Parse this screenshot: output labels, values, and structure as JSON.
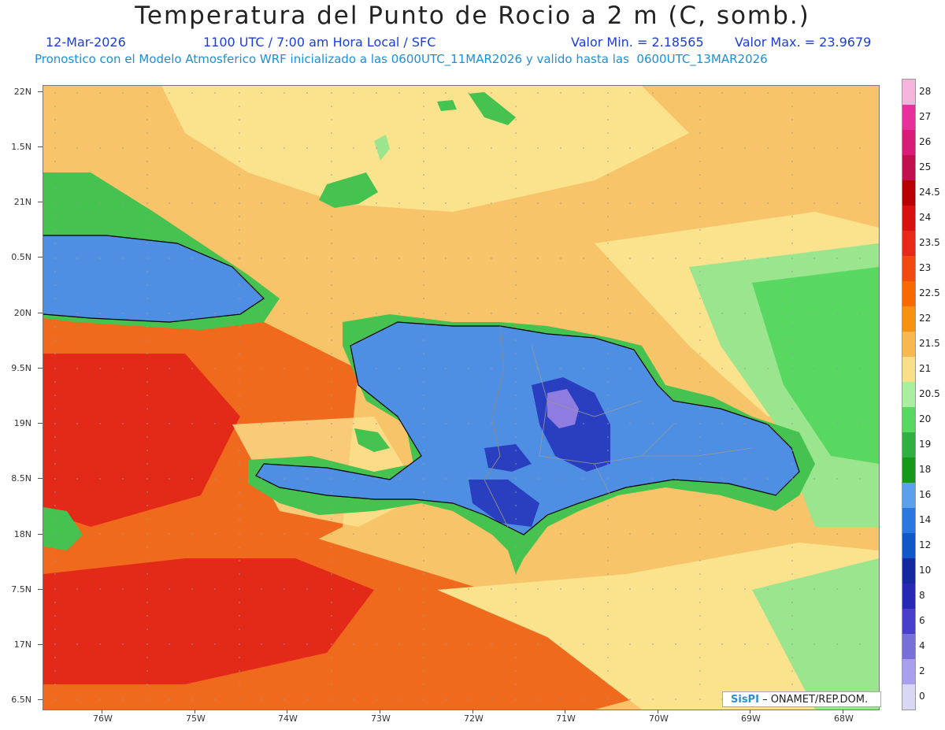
{
  "header": {
    "title": "Temperatura del Punto de Rocio a 2 m (C, somb.)",
    "date": "12-Mar-2026",
    "time_info": "1100 UTC / 7:00 am Hora Local / SFC",
    "min_value": "Valor Min. = 2.18565",
    "max_value": "Valor Max. = 23.9679",
    "model_info": "Pronostico con el Modelo Atmosferico WRF inicializado a las 0600UTC_11MAR2026 y valido hasta las  0600UTC_13MAR2026"
  },
  "axes": {
    "lat_labels": [
      "22N",
      "1.5N",
      "21N",
      "0.5N",
      "20N",
      "9.5N",
      "19N",
      "8.5N",
      "18N",
      "7.5N",
      "17N",
      "6.5N"
    ],
    "lon_labels": [
      "76W",
      "75W",
      "74W",
      "73W",
      "72W",
      "71W",
      "70W",
      "69W",
      "68W"
    ]
  },
  "legend": {
    "levels": [
      "28",
      "27",
      "26",
      "25",
      "24.5",
      "24",
      "23.5",
      "23",
      "22.5",
      "22",
      "21.5",
      "21",
      "20.5",
      "20",
      "19",
      "18",
      "16",
      "14",
      "12",
      "10",
      "8",
      "6",
      "4",
      "2",
      "0"
    ],
    "colors": [
      "#f4b4dc",
      "#e8309c",
      "#d81c78",
      "#c01050",
      "#b80000",
      "#d81010",
      "#e82818",
      "#f04a10",
      "#f86a00",
      "#f89010",
      "#f8b850",
      "#f8e088",
      "#a8f0a0",
      "#58d860",
      "#30b040",
      "#189818",
      "#5aa0ea",
      "#2878e0",
      "#1058c8",
      "#1428a0",
      "#2828b4",
      "#4840c8",
      "#7870d8",
      "#a8a0ec",
      "#d8d8f4"
    ]
  },
  "credit": {
    "logo": "SisPI",
    "text": "– ONAMET/REP.DOM."
  },
  "map_colors": {
    "ocean_warm": "#f7c46a",
    "ocean_hot": "#f06a1e",
    "ocean_very_hot": "#e32a18",
    "ocean_mild": "#fbe38e",
    "land_blue": "#4f8fe3",
    "land_dark": "#2a3fbf",
    "land_purple": "#8f7ce0",
    "green": "#45c24f",
    "light_green": "#9be58e"
  }
}
